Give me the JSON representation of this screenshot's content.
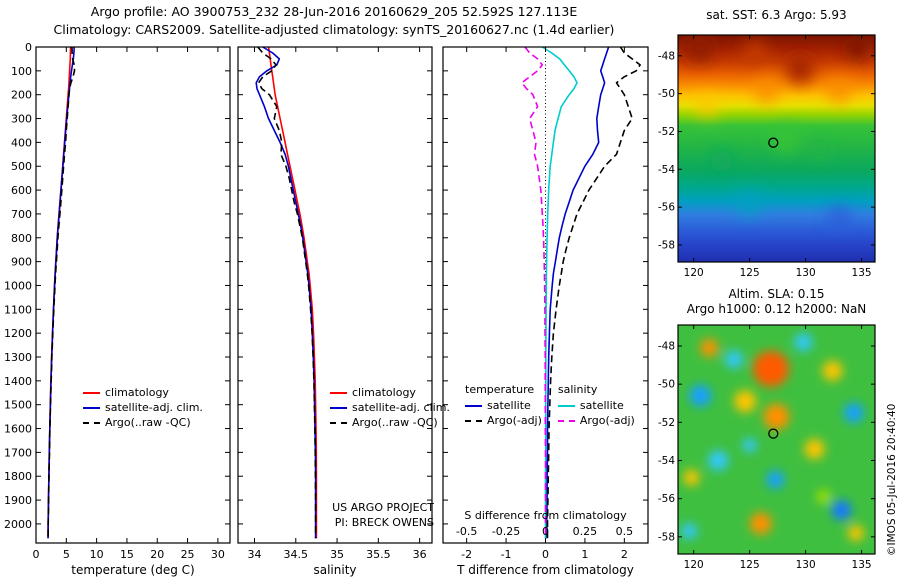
{
  "header": {
    "line1": "Argo profile: AO 3900753_232 28-Jun-2016 20160629_205 52.592S 127.113E",
    "line2": "Climatology: CARS2009. Satellite-adjusted climatology: synTS_20160627.nc (1.4d earlier)"
  },
  "colors": {
    "climatology": "#ff0000",
    "satellite_adjusted": "#0000cc",
    "argo": "#000000",
    "salinity_satellite": "#00cccc",
    "salinity_argo": "#ee00ee"
  },
  "legends": {
    "profile": {
      "items": [
        {
          "label": "climatology",
          "color": "#ff0000",
          "style": "solid"
        },
        {
          "label": "satellite-adj. clim.",
          "color": "#0000cc",
          "style": "solid"
        },
        {
          "label": "Argo(..raw -QC)",
          "color": "#000000",
          "style": "dashed"
        }
      ]
    },
    "difference": {
      "temperature_header": "temperature",
      "salinity_header": "salinity",
      "temperature_items": [
        {
          "label": "satellite",
          "color": "#0000cc",
          "style": "solid"
        },
        {
          "label": "Argo(-adj)",
          "color": "#000000",
          "style": "dashed"
        }
      ],
      "salinity_items": [
        {
          "label": "satellite",
          "color": "#00cccc",
          "style": "solid"
        },
        {
          "label": "Argo(-adj)",
          "color": "#ee00ee",
          "style": "dashed"
        }
      ]
    }
  },
  "annotations": {
    "project_line1": "US ARGO PROJECT",
    "project_line2": "PI: BRECK OWENS",
    "attribution": "©IMOS 05-Jul-2016 20:40:40"
  },
  "chart_data": {
    "type": "multi-panel",
    "depths": [
      0,
      25,
      50,
      75,
      100,
      125,
      150,
      175,
      200,
      250,
      300,
      350,
      400,
      450,
      500,
      550,
      600,
      650,
      700,
      750,
      800,
      850,
      900,
      950,
      1000,
      1100,
      1200,
      1300,
      1400,
      1500,
      1600,
      1700,
      1800,
      1900,
      2000,
      2060
    ],
    "depth_ticks": [
      0,
      100,
      200,
      300,
      400,
      500,
      600,
      700,
      800,
      900,
      1000,
      1100,
      1200,
      1300,
      1400,
      1500,
      1600,
      1700,
      1800,
      1900,
      2000
    ],
    "panels": [
      {
        "id": "temp-profile",
        "type": "line",
        "xlabel": "temperature (deg C)",
        "xlim": [
          0,
          32
        ],
        "xticks": [
          0,
          5,
          10,
          15,
          20,
          25,
          30
        ],
        "ylim": [
          0,
          2080
        ],
        "show_ytick_labels": true,
        "series": [
          {
            "name": "climatology",
            "color": "#ff0000",
            "dash": false,
            "values": [
              5.7,
              5.68,
              5.65,
              5.6,
              5.55,
              5.5,
              5.45,
              5.38,
              5.3,
              5.15,
              5.0,
              4.85,
              4.7,
              4.55,
              4.4,
              4.25,
              4.1,
              3.95,
              3.8,
              3.65,
              3.5,
              3.38,
              3.26,
              3.15,
              3.05,
              2.88,
              2.72,
              2.58,
              2.46,
              2.36,
              2.27,
              2.19,
              2.12,
              2.06,
              2.0,
              1.98
            ]
          },
          {
            "name": "satellite-adj. clim.",
            "color": "#0000cc",
            "dash": false,
            "values": [
              6.3,
              6.25,
              6.15,
              6.0,
              5.85,
              5.72,
              5.62,
              5.52,
              5.42,
              5.24,
              5.06,
              4.9,
              4.74,
              4.58,
              4.43,
              4.28,
              4.12,
              3.97,
              3.82,
              3.67,
              3.52,
              3.4,
              3.28,
              3.16,
              3.06,
              2.89,
              2.73,
              2.59,
              2.47,
              2.37,
              2.28,
              2.2,
              2.13,
              2.07,
              2.01,
              1.99
            ]
          },
          {
            "name": "Argo(..raw -QC)",
            "color": "#000000",
            "dash": true,
            "values": [
              5.93,
              5.95,
              6.05,
              6.3,
              6.35,
              6.1,
              5.75,
              5.55,
              5.45,
              5.3,
              5.15,
              5.0,
              4.88,
              4.7,
              4.55,
              4.4,
              4.25,
              4.1,
              3.94,
              3.78,
              3.62,
              3.49,
              3.36,
              3.24,
              3.13,
              2.94,
              2.77,
              2.62,
              2.5,
              2.39,
              2.3,
              2.22,
              2.14,
              2.08,
              2.02,
              2.0
            ]
          }
        ]
      },
      {
        "id": "salinity-profile",
        "type": "line",
        "xlabel": "salinity",
        "xlim": [
          33.8,
          36.15
        ],
        "xticks": [
          34,
          34.5,
          35,
          35.5,
          36
        ],
        "ylim": [
          0,
          2080
        ],
        "show_ytick_labels": false,
        "series": [
          {
            "name": "climatology",
            "color": "#ff0000",
            "dash": false,
            "values": [
              34.17,
              34.18,
              34.19,
              34.2,
              34.21,
              34.22,
              34.23,
              34.24,
              34.25,
              34.28,
              34.31,
              34.34,
              34.37,
              34.4,
              34.43,
              34.46,
              34.49,
              34.52,
              34.55,
              34.575,
              34.6,
              34.62,
              34.64,
              34.66,
              34.675,
              34.7,
              34.715,
              34.725,
              34.735,
              34.74,
              34.745,
              34.748,
              34.75,
              34.75,
              34.75,
              34.75
            ]
          },
          {
            "name": "satellite-adj. clim.",
            "color": "#0000cc",
            "dash": false,
            "values": [
              34.1,
              34.22,
              34.3,
              34.27,
              34.15,
              34.06,
              34.02,
              34.03,
              34.06,
              34.12,
              34.17,
              34.24,
              34.31,
              34.37,
              34.41,
              34.44,
              34.47,
              34.5,
              34.53,
              34.56,
              34.585,
              34.605,
              34.625,
              34.645,
              34.66,
              34.685,
              34.7,
              34.712,
              34.722,
              34.728,
              34.733,
              34.737,
              34.74,
              34.74,
              34.74,
              34.74
            ]
          },
          {
            "name": "Argo(..raw -QC)",
            "color": "#000000",
            "dash": true,
            "values": [
              34.04,
              34.1,
              34.2,
              34.26,
              34.21,
              34.1,
              34.05,
              34.09,
              34.18,
              34.27,
              34.24,
              34.3,
              34.33,
              34.32,
              34.38,
              34.42,
              34.45,
              34.48,
              34.52,
              34.55,
              34.58,
              34.6,
              34.62,
              34.64,
              34.655,
              34.68,
              34.698,
              34.71,
              34.72,
              34.726,
              34.731,
              34.735,
              34.738,
              34.74,
              34.74,
              34.74
            ]
          }
        ]
      },
      {
        "id": "difference-profile",
        "type": "line",
        "xlabel": "T difference from climatology",
        "xlim": [
          -2.6,
          2.6
        ],
        "xticks": [
          -2,
          -1,
          0,
          1,
          2
        ],
        "ylim": [
          0,
          2080
        ],
        "show_ytick_labels": false,
        "zero_line": true,
        "s_axis": {
          "label": "S difference from climatology",
          "ticks": [
            -0.5,
            -0.25,
            0,
            0.25,
            0.5
          ],
          "scale": 4
        },
        "series": [
          {
            "name": "temperature satellite",
            "color": "#0000cc",
            "dash": false,
            "values": [
              1.6,
              1.55,
              1.5,
              1.45,
              1.4,
              1.45,
              1.5,
              1.45,
              1.4,
              1.35,
              1.3,
              1.32,
              1.35,
              1.2,
              1.0,
              0.85,
              0.7,
              0.6,
              0.5,
              0.42,
              0.35,
              0.3,
              0.25,
              0.2,
              0.17,
              0.12,
              0.1,
              0.08,
              0.07,
              0.06,
              0.05,
              0.05,
              0.04,
              0.04,
              0.03,
              0.03
            ]
          },
          {
            "name": "temperature Argo(-adj)",
            "color": "#000000",
            "dash": true,
            "values": [
              1.9,
              2.0,
              2.2,
              2.4,
              2.3,
              2.0,
              1.8,
              1.9,
              2.0,
              2.1,
              2.2,
              2.0,
              1.9,
              1.8,
              1.5,
              1.3,
              1.1,
              0.95,
              0.8,
              0.7,
              0.6,
              0.52,
              0.45,
              0.4,
              0.35,
              0.27,
              0.2,
              0.16,
              0.13,
              0.11,
              0.09,
              0.08,
              0.07,
              0.06,
              0.05,
              0.05
            ]
          },
          {
            "name": "salinity satellite",
            "color": "#00cccc",
            "dash": false,
            "scale": 4,
            "values": [
              -0.02,
              0.04,
              0.09,
              0.12,
              0.15,
              0.18,
              0.2,
              0.18,
              0.15,
              0.1,
              0.08,
              0.06,
              0.05,
              0.04,
              0.03,
              0.025,
              0.02,
              0.017,
              0.014,
              0.012,
              0.01,
              0.008,
              0.007,
              0.006,
              0.005,
              0.004,
              0.003,
              0.002,
              0.002,
              0.001,
              0.001,
              0.001,
              0,
              0,
              0,
              0
            ]
          },
          {
            "name": "salinity Argo(-adj)",
            "color": "#ee00ee",
            "dash": true,
            "scale": 4,
            "values": [
              -0.13,
              -0.1,
              -0.05,
              -0.02,
              -0.05,
              -0.1,
              -0.15,
              -0.12,
              -0.08,
              -0.05,
              -0.1,
              -0.08,
              -0.06,
              -0.07,
              -0.05,
              -0.04,
              -0.03,
              -0.025,
              -0.02,
              -0.016,
              -0.013,
              -0.01,
              -0.008,
              -0.007,
              -0.006,
              -0.004,
              -0.003,
              -0.002,
              -0.002,
              -0.001,
              -0.001,
              0,
              0,
              0,
              0,
              0
            ]
          }
        ]
      }
    ],
    "maps": [
      {
        "id": "sst-map",
        "type": "heatmap",
        "title": "sat. SST: 6.3 Argo: 5.93",
        "xlim": [
          118.6,
          136.2
        ],
        "xticks": [
          120,
          125,
          130,
          135
        ],
        "ylat": [
          -46.9,
          -58.9
        ],
        "yticks": [
          -48,
          -50,
          -52,
          -54,
          -56,
          -58
        ],
        "marker": {
          "lon": 127.113,
          "lat": -52.592
        },
        "blur": 8,
        "gradient": [
          {
            "offset": 0.0,
            "color": "#7a1500"
          },
          {
            "offset": 0.06,
            "color": "#a32000"
          },
          {
            "offset": 0.12,
            "color": "#c63c00"
          },
          {
            "offset": 0.17,
            "color": "#e85f00"
          },
          {
            "offset": 0.22,
            "color": "#f98c00"
          },
          {
            "offset": 0.27,
            "color": "#fdc500"
          },
          {
            "offset": 0.31,
            "color": "#e8e000"
          },
          {
            "offset": 0.35,
            "color": "#97d400"
          },
          {
            "offset": 0.4,
            "color": "#37c337"
          },
          {
            "offset": 0.5,
            "color": "#21b447"
          },
          {
            "offset": 0.6,
            "color": "#0aa85f"
          },
          {
            "offset": 0.67,
            "color": "#00a88c"
          },
          {
            "offset": 0.73,
            "color": "#00a0c0"
          },
          {
            "offset": 0.79,
            "color": "#2f7fe0"
          },
          {
            "offset": 0.86,
            "color": "#2b5cd8"
          },
          {
            "offset": 0.93,
            "color": "#2742c8"
          },
          {
            "offset": 1.0,
            "color": "#1f2fae"
          }
        ],
        "blobs": [
          {
            "lon": 120.5,
            "lat": -47.6,
            "r": 14,
            "color": "#8f1c00"
          },
          {
            "lon": 125.5,
            "lat": -47.9,
            "r": 12,
            "color": "#c63c00"
          },
          {
            "lon": 129.5,
            "lat": -48.7,
            "r": 14,
            "color": "#a32000"
          },
          {
            "lon": 134.6,
            "lat": -47.6,
            "r": 11,
            "color": "#7a1500"
          },
          {
            "lon": 133.0,
            "lat": -49.8,
            "r": 12,
            "color": "#f98c00"
          },
          {
            "lon": 126.5,
            "lat": -49.8,
            "r": 12,
            "color": "#f98c00"
          },
          {
            "lon": 121.2,
            "lat": -50.6,
            "r": 11,
            "color": "#fdc500"
          },
          {
            "lon": 128.2,
            "lat": -52.4,
            "r": 14,
            "color": "#37c337"
          },
          {
            "lon": 122.5,
            "lat": -53.6,
            "r": 11,
            "color": "#0aa85f"
          },
          {
            "lon": 131.2,
            "lat": -53.0,
            "r": 10,
            "color": "#21b447"
          },
          {
            "lon": 125.0,
            "lat": -55.8,
            "r": 12,
            "color": "#00a0c0"
          },
          {
            "lon": 133.0,
            "lat": -56.6,
            "r": 11,
            "color": "#2b5cd8"
          }
        ]
      },
      {
        "id": "sla-map",
        "type": "heatmap",
        "title1": "Altim. SLA: 0.15",
        "title2": "Argo h1000: 0.12 h2000: NaN",
        "xlim": [
          118.6,
          136.2
        ],
        "xticks": [
          120,
          125,
          130,
          135
        ],
        "ylat": [
          -46.9,
          -58.9
        ],
        "yticks": [
          -48,
          -50,
          -52,
          -54,
          -56,
          -58
        ],
        "marker": {
          "lon": 127.113,
          "lat": -52.592
        },
        "blur": 5,
        "base": "#3fbf3f",
        "blobs": [
          {
            "lon": 126.9,
            "lat": -49.2,
            "r": 18,
            "color": "#ff5a00"
          },
          {
            "lon": 127.4,
            "lat": -51.7,
            "r": 13,
            "color": "#ff9000"
          },
          {
            "lon": 124.6,
            "lat": -50.9,
            "r": 11,
            "color": "#ffc400"
          },
          {
            "lon": 132.4,
            "lat": -49.3,
            "r": 10,
            "color": "#ffc400"
          },
          {
            "lon": 121.4,
            "lat": -48.1,
            "r": 9,
            "color": "#ff9000"
          },
          {
            "lon": 130.8,
            "lat": -53.4,
            "r": 10,
            "color": "#ffc400"
          },
          {
            "lon": 126.0,
            "lat": -57.3,
            "r": 11,
            "color": "#ff9000"
          },
          {
            "lon": 119.8,
            "lat": -54.9,
            "r": 8,
            "color": "#ffc400"
          },
          {
            "lon": 134.5,
            "lat": -57.8,
            "r": 8,
            "color": "#ffc400"
          },
          {
            "lon": 120.6,
            "lat": -50.6,
            "r": 11,
            "color": "#18a0ff"
          },
          {
            "lon": 123.6,
            "lat": -48.7,
            "r": 9,
            "color": "#30c8ff"
          },
          {
            "lon": 129.8,
            "lat": -47.8,
            "r": 9,
            "color": "#30c8ff"
          },
          {
            "lon": 134.3,
            "lat": -51.5,
            "r": 10,
            "color": "#18a0ff"
          },
          {
            "lon": 122.2,
            "lat": -54.0,
            "r": 10,
            "color": "#30c8ff"
          },
          {
            "lon": 127.3,
            "lat": -55.0,
            "r": 9,
            "color": "#18a0ff"
          },
          {
            "lon": 133.2,
            "lat": -56.6,
            "r": 10,
            "color": "#1878ff"
          },
          {
            "lon": 119.6,
            "lat": -57.7,
            "r": 8,
            "color": "#30c8ff"
          },
          {
            "lon": 125.0,
            "lat": -53.2,
            "r": 7,
            "color": "#30c8ff"
          },
          {
            "lon": 131.6,
            "lat": -55.9,
            "r": 7,
            "color": "#a0e000"
          }
        ]
      }
    ]
  }
}
